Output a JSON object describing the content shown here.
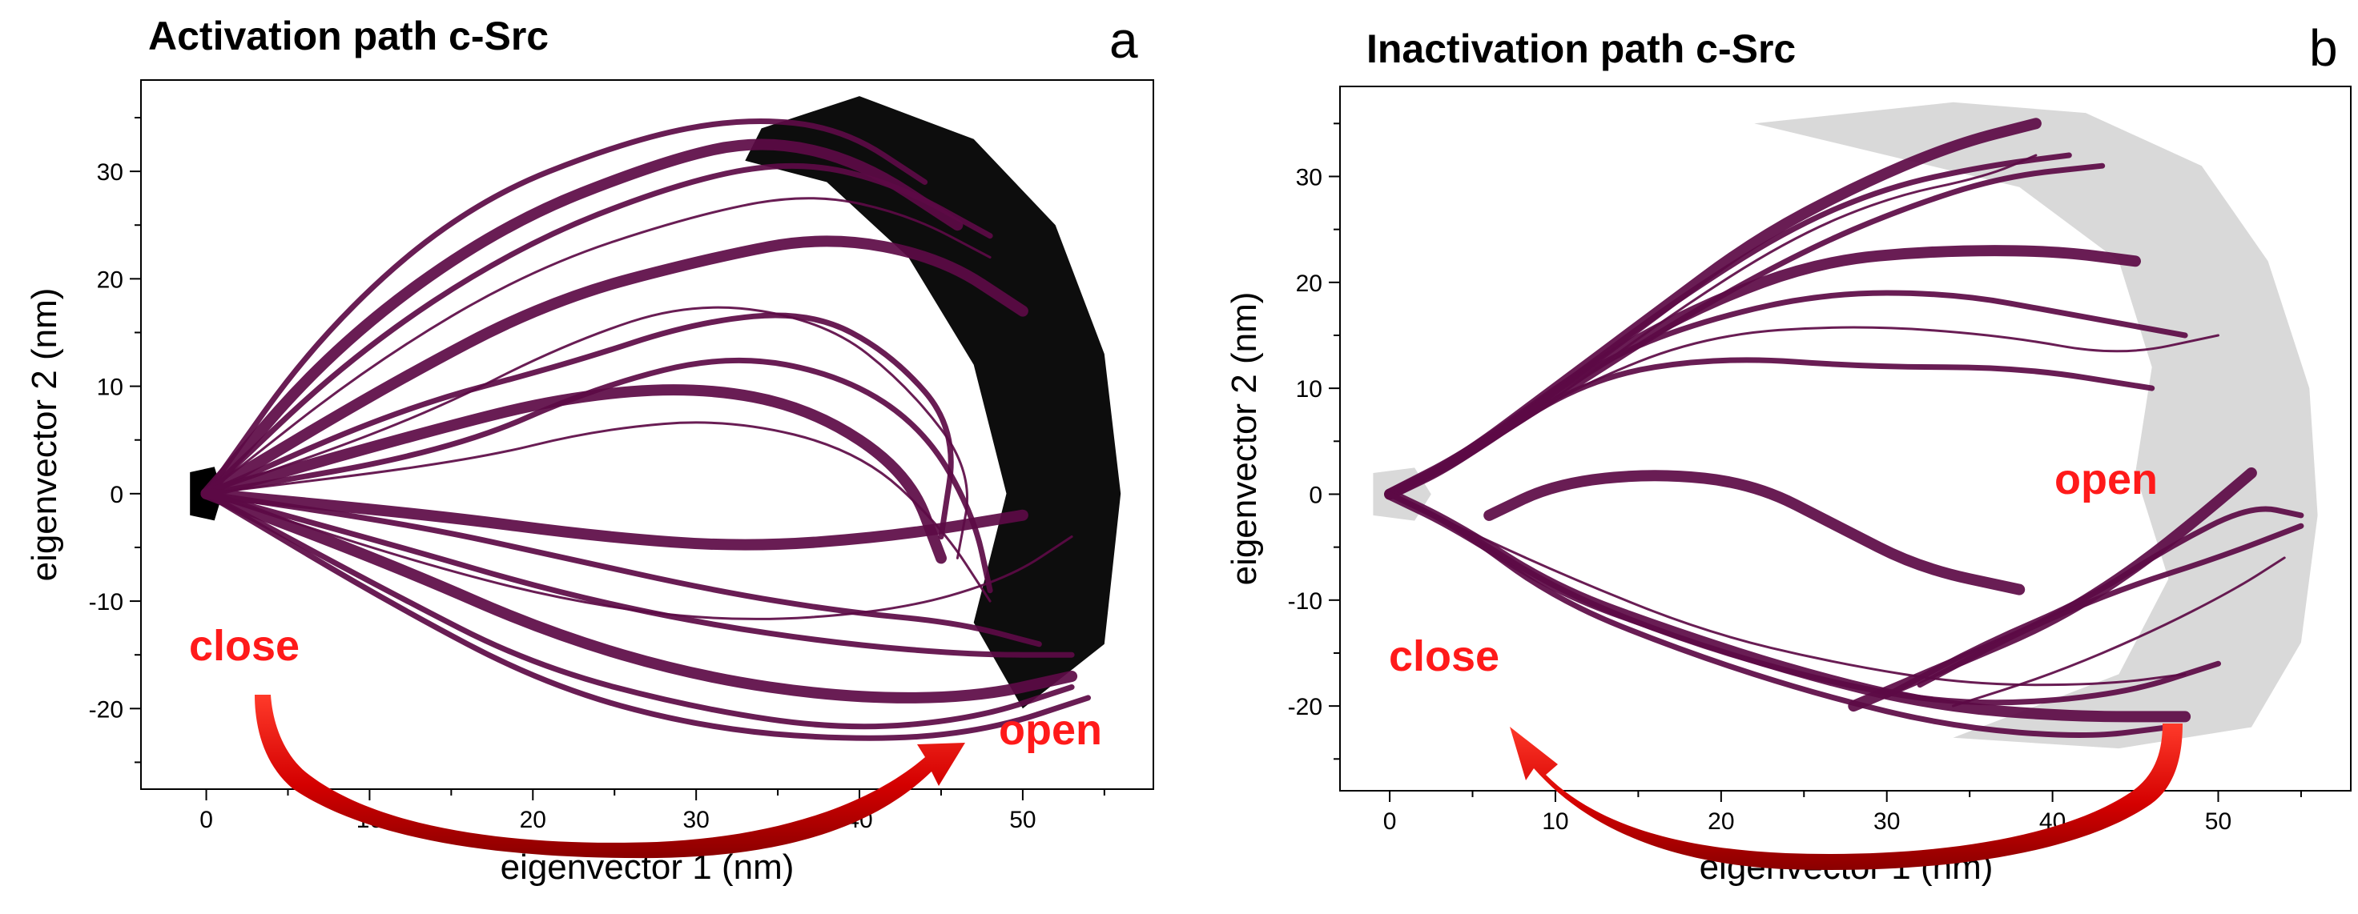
{
  "chart_data": [
    {
      "type": "scatter",
      "panel": "a",
      "title": "Activation path c-Src",
      "xlabel": "eigenvector 1 (nm)",
      "ylabel": "eigenvector 2 (nm)",
      "xlim": [
        -4,
        58
      ],
      "ylim": [
        -27.5,
        38.5
      ],
      "xticks": [
        0,
        10,
        20,
        30,
        40,
        50
      ],
      "yticks": [
        -20,
        -10,
        0,
        10,
        20,
        30
      ],
      "x_minor_step": 5,
      "y_minor_step": 5,
      "grid": false,
      "background_points_color": "#000000",
      "trajectory_color": "#5c0a45",
      "arrow_color": "#d40000",
      "arrow_direction": "close-to-open",
      "annotations": [
        {
          "text": "close",
          "x": 1,
          "y": -14.8
        },
        {
          "text": "open",
          "x": 48.5,
          "y": -23.3
        }
      ],
      "series": [
        {
          "points": [
            [
              0,
              0
            ],
            [
              8,
              14
            ],
            [
              18,
              25
            ],
            [
              28,
              31
            ],
            [
              34,
              33
            ],
            [
              40,
              31
            ],
            [
              46,
              25
            ]
          ]
        },
        {
          "points": [
            [
              0,
              0
            ],
            [
              9,
              13
            ],
            [
              19,
              23
            ],
            [
              29,
              29
            ],
            [
              36,
              31
            ],
            [
              42,
              29
            ],
            [
              48,
              24
            ]
          ]
        },
        {
          "points": [
            [
              0,
              0
            ],
            [
              7,
              15
            ],
            [
              16,
              27
            ],
            [
              26,
              33
            ],
            [
              33,
              35
            ],
            [
              39,
              34
            ],
            [
              44,
              29
            ]
          ]
        },
        {
          "points": [
            [
              0,
              0
            ],
            [
              10,
              12
            ],
            [
              20,
              21
            ],
            [
              30,
              26
            ],
            [
              37,
              28
            ],
            [
              43,
              26
            ],
            [
              48,
              22
            ]
          ]
        },
        {
          "points": [
            [
              0,
              0
            ],
            [
              11,
              10
            ],
            [
              21,
              18
            ],
            [
              31,
              22
            ],
            [
              38,
              24
            ],
            [
              45,
              22
            ],
            [
              50,
              17
            ]
          ]
        },
        {
          "points": [
            [
              0,
              0
            ],
            [
              12,
              8
            ],
            [
              22,
              12
            ],
            [
              30,
              16
            ],
            [
              37,
              17
            ],
            [
              42,
              13
            ],
            [
              46,
              6
            ],
            [
              45,
              -4
            ]
          ]
        },
        {
          "points": [
            [
              0,
              0
            ],
            [
              13,
              7
            ],
            [
              22,
              14
            ],
            [
              30,
              18
            ],
            [
              38,
              16
            ],
            [
              43,
              10
            ],
            [
              47,
              2
            ],
            [
              46,
              -6
            ]
          ]
        },
        {
          "points": [
            [
              0,
              0
            ],
            [
              15,
              4
            ],
            [
              24,
              10
            ],
            [
              32,
              13
            ],
            [
              39,
              11
            ],
            [
              44,
              6
            ],
            [
              47,
              -2
            ],
            [
              48,
              -9
            ]
          ]
        },
        {
          "points": [
            [
              0,
              0
            ],
            [
              14,
              6
            ],
            [
              22,
              9
            ],
            [
              30,
              10
            ],
            [
              37,
              8
            ],
            [
              43,
              2
            ],
            [
              45,
              -6
            ]
          ]
        },
        {
          "points": [
            [
              0,
              0
            ],
            [
              16,
              3
            ],
            [
              24,
              6
            ],
            [
              32,
              7
            ],
            [
              40,
              4
            ],
            [
              45,
              -3
            ],
            [
              48,
              -10
            ]
          ]
        },
        {
          "points": [
            [
              0,
              0
            ],
            [
              13,
              -3
            ],
            [
              22,
              -6
            ],
            [
              31,
              -9
            ],
            [
              39,
              -11
            ],
            [
              46,
              -12
            ],
            [
              51,
              -14
            ]
          ]
        },
        {
          "points": [
            [
              0,
              0
            ],
            [
              12,
              -5
            ],
            [
              21,
              -9
            ],
            [
              30,
              -12
            ],
            [
              39,
              -14
            ],
            [
              47,
              -15
            ],
            [
              53,
              -15
            ]
          ]
        },
        {
          "points": [
            [
              0,
              0
            ],
            [
              12,
              -7
            ],
            [
              21,
              -13
            ],
            [
              30,
              -17
            ],
            [
              39,
              -19
            ],
            [
              47,
              -19
            ],
            [
              53,
              -17
            ]
          ]
        },
        {
          "points": [
            [
              0,
              0
            ],
            [
              11,
              -9
            ],
            [
              20,
              -16
            ],
            [
              30,
              -20
            ],
            [
              39,
              -22
            ],
            [
              47,
              -21
            ],
            [
              53,
              -18
            ]
          ]
        },
        {
          "points": [
            [
              0,
              0
            ],
            [
              11,
              -10
            ],
            [
              21,
              -18
            ],
            [
              31,
              -22
            ],
            [
              41,
              -23
            ],
            [
              48,
              -22
            ],
            [
              54,
              -19
            ]
          ]
        },
        {
          "points": [
            [
              0,
              0
            ],
            [
              12,
              -6
            ],
            [
              22,
              -10
            ],
            [
              32,
              -12
            ],
            [
              42,
              -11
            ],
            [
              49,
              -8
            ],
            [
              53,
              -4
            ]
          ]
        },
        {
          "points": [
            [
              0,
              0
            ],
            [
              14,
              -2
            ],
            [
              24,
              -4
            ],
            [
              33,
              -5
            ],
            [
              42,
              -4
            ],
            [
              50,
              -2
            ]
          ]
        }
      ]
    },
    {
      "type": "scatter",
      "panel": "b",
      "title": "Inactivation path c-Src",
      "xlabel": "eigenvector 1 (nm)",
      "ylabel": "eigenvector 2 (nm)",
      "xlim": [
        -3,
        58
      ],
      "ylim": [
        -28,
        38.5
      ],
      "xticks": [
        0,
        10,
        20,
        30,
        40,
        50
      ],
      "yticks": [
        -20,
        -10,
        0,
        10,
        20,
        30
      ],
      "x_minor_step": 5,
      "y_minor_step": 5,
      "grid": false,
      "background_points_color": "#d9d9d9",
      "trajectory_color": "#5c0a45",
      "arrow_color": "#d40000",
      "arrow_direction": "open-to-close",
      "annotations": [
        {
          "text": "close",
          "x": -1.2,
          "y": -15.6
        },
        {
          "text": "open",
          "x": 40.5,
          "y": 1.6
        }
      ],
      "series": [
        {
          "points": [
            [
              0,
              0
            ],
            [
              4,
              3
            ],
            [
              10,
              10
            ],
            [
              16,
              17
            ],
            [
              22,
              24
            ],
            [
              28,
              29
            ],
            [
              34,
              33
            ],
            [
              39,
              35
            ]
          ]
        },
        {
          "points": [
            [
              0,
              0
            ],
            [
              4,
              3
            ],
            [
              11,
              11
            ],
            [
              17,
              18
            ],
            [
              24,
              25
            ],
            [
              30,
              29
            ],
            [
              36,
              31
            ],
            [
              41,
              32
            ]
          ]
        },
        {
          "points": [
            [
              0,
              0
            ],
            [
              4,
              3
            ],
            [
              11,
              10
            ],
            [
              18,
              17
            ],
            [
              25,
              23
            ],
            [
              31,
              27
            ],
            [
              37,
              30
            ],
            [
              43,
              31
            ]
          ]
        },
        {
          "points": [
            [
              0,
              0
            ],
            [
              4,
              3
            ],
            [
              10,
              9
            ],
            [
              17,
              17
            ],
            [
              24,
              24
            ],
            [
              30,
              28
            ],
            [
              36,
              30
            ],
            [
              39,
              32
            ]
          ]
        },
        {
          "points": [
            [
              0,
              0
            ],
            [
              5,
              4
            ],
            [
              12,
              12
            ],
            [
              19,
              18
            ],
            [
              26,
              22
            ],
            [
              33,
              23
            ],
            [
              40,
              23
            ],
            [
              45,
              22
            ]
          ]
        },
        {
          "points": [
            [
              0,
              0
            ],
            [
              5,
              4
            ],
            [
              12,
              12
            ],
            [
              18,
              16
            ],
            [
              26,
              19
            ],
            [
              34,
              19
            ],
            [
              41,
              17
            ],
            [
              48,
              15
            ]
          ]
        },
        {
          "points": [
            [
              0,
              0
            ],
            [
              5,
              4
            ],
            [
              11,
              10
            ],
            [
              19,
              15
            ],
            [
              28,
              16
            ],
            [
              37,
              15
            ],
            [
              44,
              13
            ],
            [
              50,
              15
            ]
          ]
        },
        {
          "points": [
            [
              0,
              0
            ],
            [
              5,
              4
            ],
            [
              12,
              11
            ],
            [
              20,
              13
            ],
            [
              29,
              12
            ],
            [
              38,
              12
            ],
            [
              46,
              10
            ]
          ]
        },
        {
          "points": [
            [
              0,
              0
            ],
            [
              4,
              -3
            ],
            [
              10,
              -9
            ],
            [
              17,
              -13
            ],
            [
              25,
              -17
            ],
            [
              33,
              -20
            ],
            [
              41,
              -21
            ],
            [
              48,
              -21
            ]
          ]
        },
        {
          "points": [
            [
              0,
              0
            ],
            [
              4,
              -3
            ],
            [
              11,
              -8
            ],
            [
              19,
              -13
            ],
            [
              27,
              -16
            ],
            [
              35,
              -18
            ],
            [
              43,
              -18
            ],
            [
              48,
              -17
            ]
          ]
        },
        {
          "points": [
            [
              0,
              0
            ],
            [
              4,
              -3
            ],
            [
              10,
              -9
            ],
            [
              18,
              -14
            ],
            [
              27,
              -18
            ],
            [
              35,
              -20
            ],
            [
              44,
              -19
            ],
            [
              50,
              -16
            ]
          ]
        },
        {
          "points": [
            [
              0,
              0
            ],
            [
              4,
              -3
            ],
            [
              10,
              -10
            ],
            [
              18,
              -15
            ],
            [
              26,
              -19
            ],
            [
              34,
              -22
            ],
            [
              42,
              -23
            ],
            [
              47,
              -22
            ]
          ]
        },
        {
          "points": [
            [
              28,
              -20
            ],
            [
              34,
              -16
            ],
            [
              40,
              -12
            ],
            [
              45,
              -7
            ],
            [
              49,
              -2
            ],
            [
              52,
              2
            ]
          ]
        },
        {
          "points": [
            [
              30,
              -19
            ],
            [
              36,
              -14
            ],
            [
              42,
              -10
            ],
            [
              47,
              -5
            ],
            [
              52,
              -1
            ],
            [
              55,
              -2
            ]
          ]
        },
        {
          "points": [
            [
              32,
              -18
            ],
            [
              38,
              -13
            ],
            [
              44,
              -9
            ],
            [
              50,
              -6
            ],
            [
              55,
              -3
            ]
          ]
        },
        {
          "points": [
            [
              34,
              -20
            ],
            [
              40,
              -17
            ],
            [
              46,
              -13
            ],
            [
              51,
              -9
            ],
            [
              54,
              -6
            ]
          ]
        },
        {
          "points": [
            [
              6,
              -2
            ],
            [
              10,
              1
            ],
            [
              16,
              2
            ],
            [
              22,
              1
            ],
            [
              27,
              -3
            ],
            [
              32,
              -7
            ],
            [
              38,
              -9
            ]
          ]
        }
      ]
    }
  ]
}
